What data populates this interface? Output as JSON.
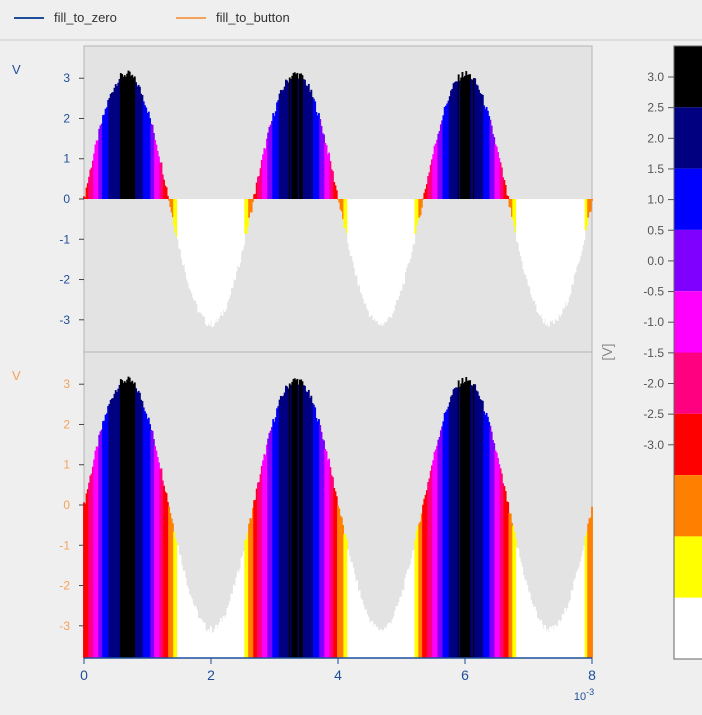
{
  "legend": {
    "items": [
      {
        "label": "fill_to_zero",
        "color": "#1f4e9a"
      },
      {
        "label": "fill_to_button",
        "color": "#f5a25b"
      }
    ]
  },
  "colors": {
    "plot_background": "#e3e3e3",
    "page_background": "#efefef",
    "axis_label_top": "#1f4e9a",
    "axis_label_bottom": "#f5a25b"
  },
  "chart_data": [
    {
      "type": "area",
      "series_name": "fill_to_zero",
      "fill_mode": "to_zero",
      "ylabel": "V",
      "ylim": [
        -3.8,
        3.8
      ],
      "yticks": [
        -3,
        -2,
        -1,
        0,
        1,
        2,
        3
      ],
      "xlim": [
        0,
        8
      ],
      "signal": {
        "amplitude": 3.1,
        "offset": 0.0,
        "period": 2.67,
        "phase_peak_at": 0.67,
        "noise": 0.2
      },
      "x_sample_step": 0.02
    },
    {
      "type": "area",
      "series_name": "fill_to_button",
      "fill_mode": "to_bottom",
      "ylabel": "V",
      "ylim": [
        -3.8,
        3.8
      ],
      "yticks": [
        -3,
        -2,
        -1,
        0,
        1,
        2,
        3
      ],
      "xlim": [
        0,
        8
      ],
      "xticks": [
        0,
        2,
        4,
        6,
        8
      ],
      "x_scale_label": "10-3",
      "signal": {
        "amplitude": 3.1,
        "offset": 0.0,
        "period": 2.67,
        "phase_peak_at": 0.67,
        "noise": 0.2
      },
      "x_sample_step": 0.02
    }
  ],
  "colorbar": {
    "label": "[V]",
    "ticks": [
      "3.0",
      "2.5",
      "2.0",
      "1.5",
      "1.0",
      "0.5",
      "0.0",
      "-0.5",
      "-1.0",
      "-1.5",
      "-2.0",
      "-2.5",
      "-3.0"
    ],
    "bands": [
      {
        "min": 3.0,
        "color": "#000000"
      },
      {
        "min": 2.5,
        "color": "#000080"
      },
      {
        "min": 2.0,
        "color": "#0000ff"
      },
      {
        "min": 1.5,
        "color": "#8000ff"
      },
      {
        "min": 1.0,
        "color": "#ff00ff"
      },
      {
        "min": 0.5,
        "color": "#ff0080"
      },
      {
        "min": 0.0,
        "color": "#ff0000"
      },
      {
        "min": -0.5,
        "color": "#ff8000"
      },
      {
        "min": -1.0,
        "color": "#ffff00"
      },
      {
        "min": -99,
        "color": "#ffffff"
      }
    ]
  }
}
